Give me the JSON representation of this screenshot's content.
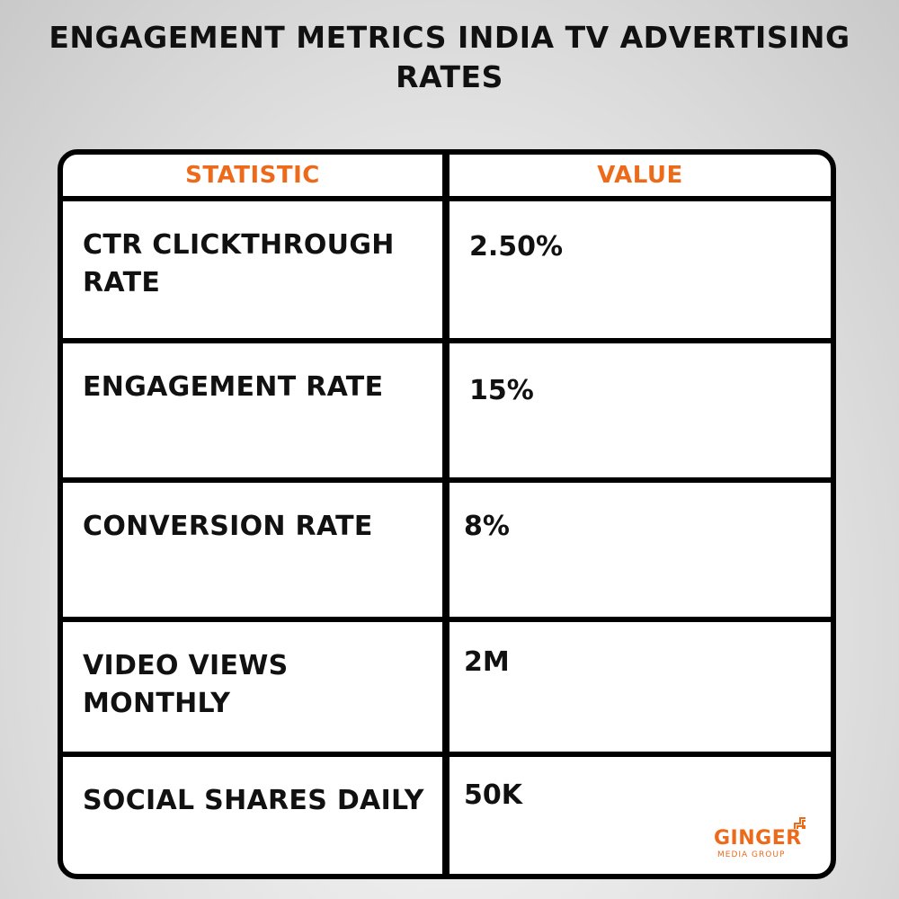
{
  "title": "ENGAGEMENT METRICS INDIA TV ADVERTISING RATES",
  "table": {
    "headers": [
      "STATISTIC",
      "VALUE"
    ],
    "rows": [
      {
        "statistic": "CTR CLICKTHROUGH RATE",
        "value": "2.50%"
      },
      {
        "statistic": "ENGAGEMENT RATE",
        "value": "15%"
      },
      {
        "statistic": "CONVERSION RATE",
        "value": "8%"
      },
      {
        "statistic": "VIDEO VIEWS MONTHLY",
        "value": "2M"
      },
      {
        "statistic": "SOCIAL SHARES DAILY",
        "value": "50K"
      }
    ]
  },
  "logo": {
    "word": "GINGER",
    "subtitle": "MEDIA GROUP",
    "icon": "ginger-logo-mark-icon",
    "color": "#ee6a1b"
  },
  "colors": {
    "accent": "#ee6a1b",
    "text": "#111111",
    "border": "#000000"
  }
}
